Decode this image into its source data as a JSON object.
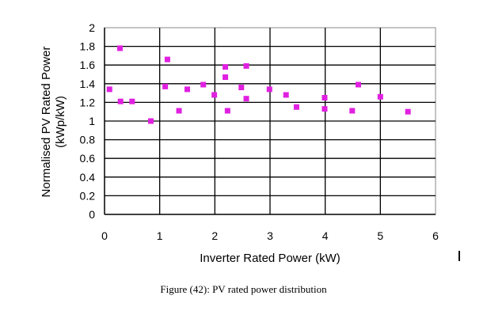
{
  "chart_data": {
    "type": "scatter",
    "xlabel": "Inverter Rated Power (kW)",
    "ylabel": [
      "Normalised PV Rated Power",
      "(kWp/kW)"
    ],
    "xlim": [
      0,
      6
    ],
    "ylim": [
      0,
      2
    ],
    "xticks": [
      "0",
      "1",
      "2",
      "3",
      "4",
      "5",
      "6"
    ],
    "yticks": [
      "0",
      "0.2",
      "0.4",
      "0.6",
      "0.8",
      "1",
      "1.2",
      "1.4",
      "1.6",
      "1.8",
      "2"
    ],
    "grid": true,
    "marker_color": "#e020e0",
    "points": [
      [
        0.09,
        1.34
      ],
      [
        0.28,
        1.78
      ],
      [
        0.29,
        1.21
      ],
      [
        0.5,
        1.21
      ],
      [
        0.84,
        1.0
      ],
      [
        1.1,
        1.37
      ],
      [
        1.14,
        1.66
      ],
      [
        1.35,
        1.11
      ],
      [
        1.5,
        1.34
      ],
      [
        1.79,
        1.39
      ],
      [
        1.99,
        1.28
      ],
      [
        2.19,
        1.58
      ],
      [
        2.19,
        1.47
      ],
      [
        2.23,
        1.11
      ],
      [
        2.48,
        1.36
      ],
      [
        2.57,
        1.59
      ],
      [
        2.57,
        1.24
      ],
      [
        2.99,
        1.34
      ],
      [
        3.29,
        1.28
      ],
      [
        3.48,
        1.15
      ],
      [
        3.99,
        1.25
      ],
      [
        3.99,
        1.13
      ],
      [
        4.49,
        1.11
      ],
      [
        4.6,
        1.39
      ],
      [
        5.0,
        1.26
      ],
      [
        5.5,
        1.1
      ]
    ]
  },
  "caption": "Figure (42):  PV rated power distribution"
}
